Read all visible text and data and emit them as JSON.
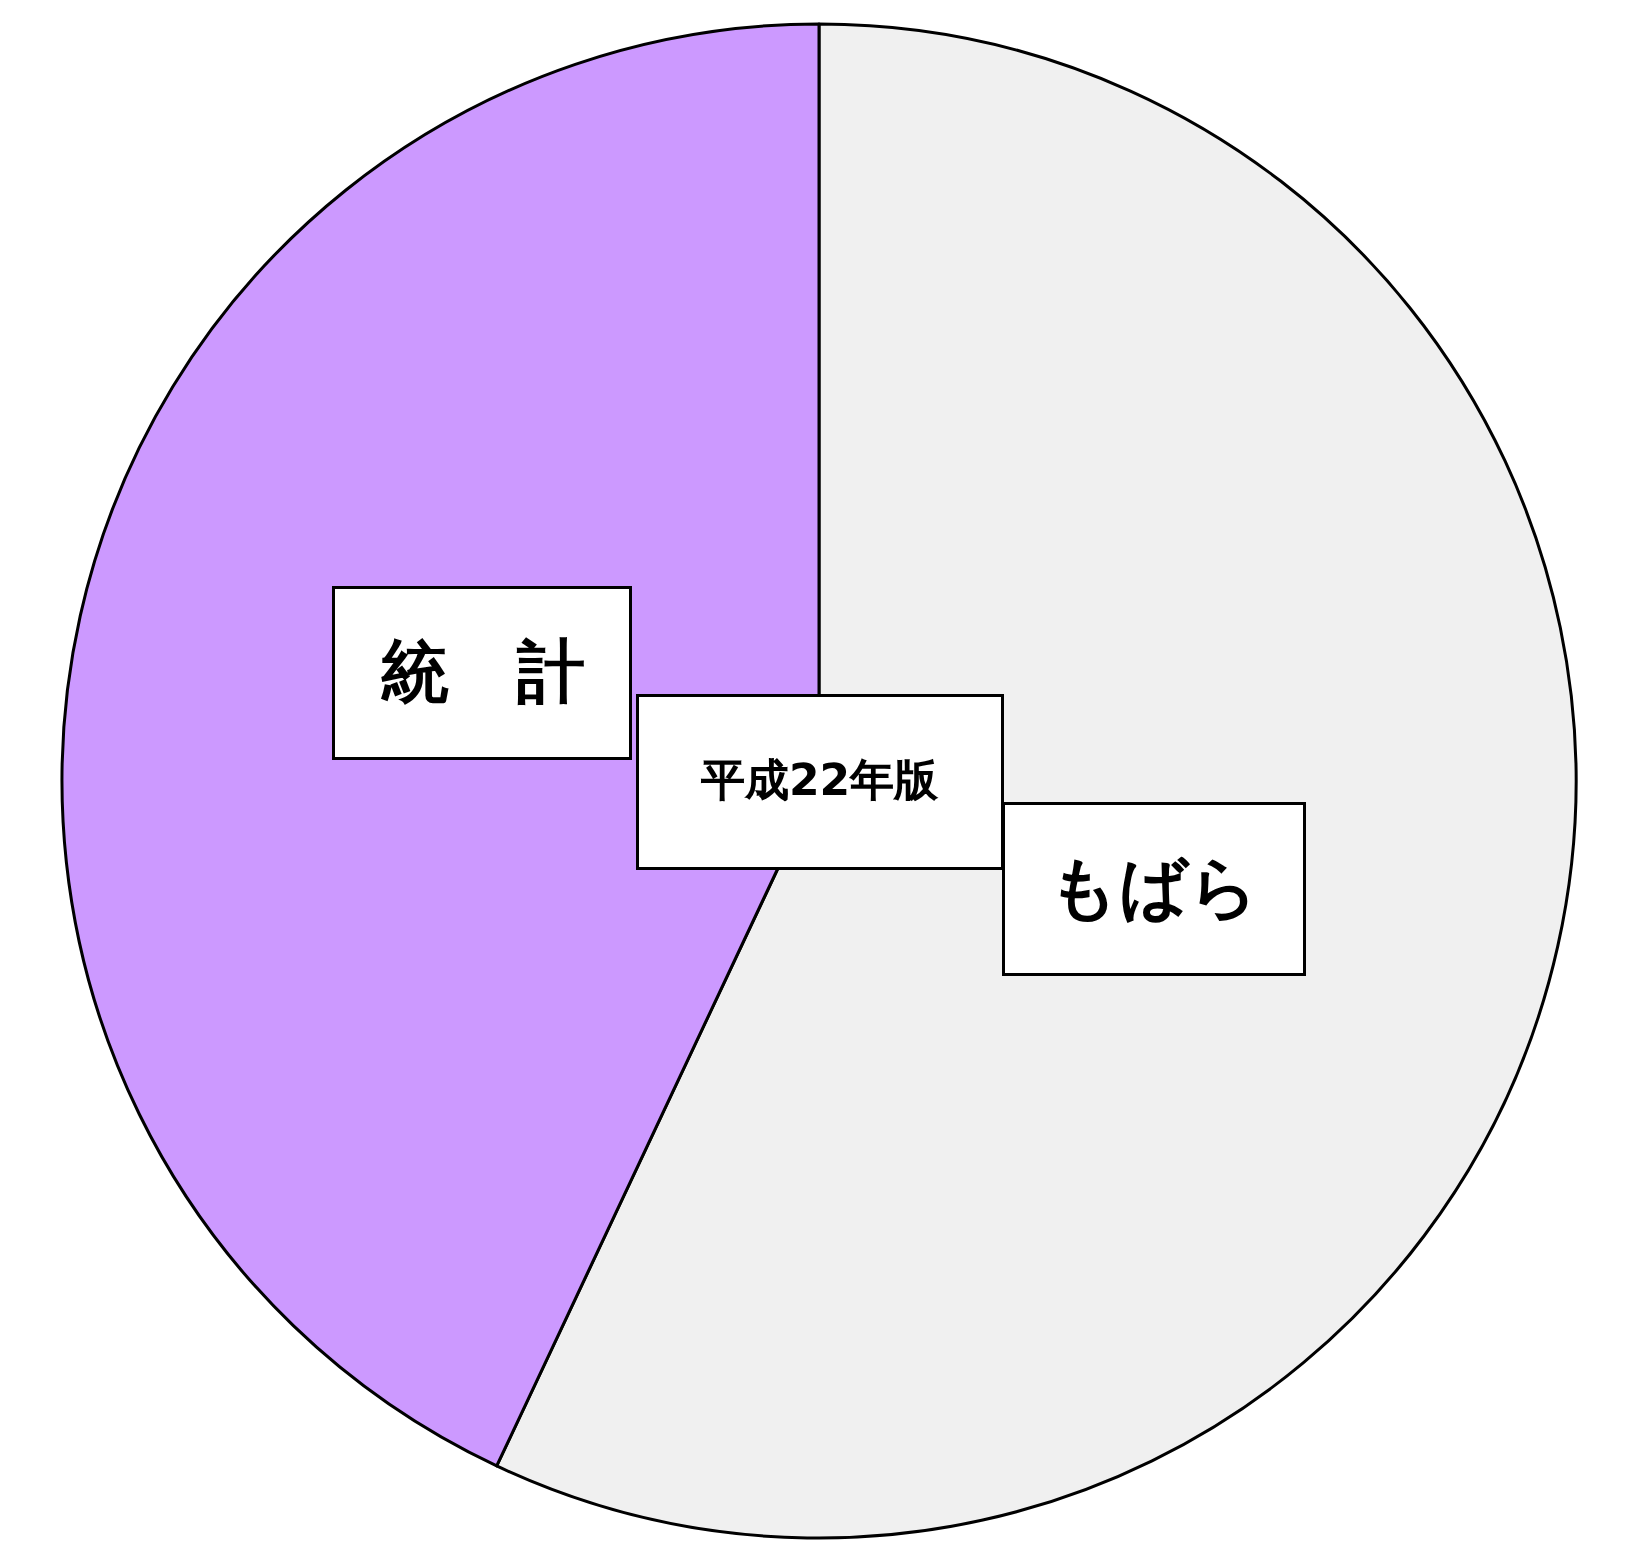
{
  "chart_data": {
    "type": "pie",
    "title": "平成22年版",
    "categories": [
      "もばら",
      "統　計"
    ],
    "values": [
      57,
      43
    ],
    "colors": [
      "#f0f0f0",
      "#cc99ff"
    ],
    "legend": false
  }
}
